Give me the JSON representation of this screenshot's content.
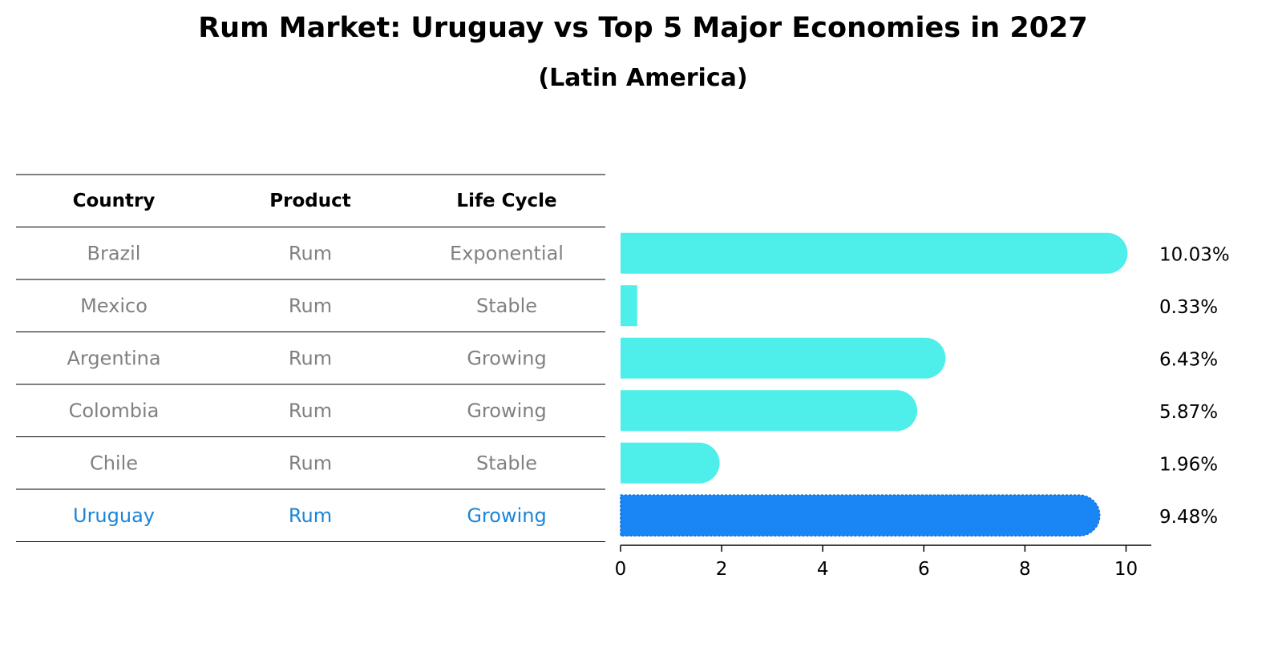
{
  "chart_data": {
    "type": "bar",
    "orientation": "horizontal",
    "title": "Rum Market: Uruguay vs Top 5 Major Economies in 2027",
    "subtitle": "(Latin America)",
    "table": {
      "headers": [
        "Country",
        "Product",
        "Life Cycle"
      ],
      "rows": [
        {
          "country": "Brazil",
          "product": "Rum",
          "life_cycle": "Exponential",
          "highlight": false
        },
        {
          "country": "Mexico",
          "product": "Rum",
          "life_cycle": "Stable",
          "highlight": false
        },
        {
          "country": "Argentina",
          "product": "Rum",
          "life_cycle": "Growing",
          "highlight": false
        },
        {
          "country": "Colombia",
          "product": "Rum",
          "life_cycle": "Growing",
          "highlight": false
        },
        {
          "country": "Chile",
          "product": "Rum",
          "life_cycle": "Stable",
          "highlight": false
        },
        {
          "country": "Uruguay",
          "product": "Rum",
          "life_cycle": "Growing",
          "highlight": true
        }
      ]
    },
    "categories": [
      "Brazil",
      "Mexico",
      "Argentina",
      "Colombia",
      "Chile",
      "Uruguay"
    ],
    "values": [
      10.03,
      0.33,
      6.43,
      5.87,
      1.96,
      9.48
    ],
    "value_labels": [
      "10.03%",
      "0.33%",
      "6.43%",
      "5.87%",
      "1.96%",
      "9.48%"
    ],
    "xlim": [
      0,
      10.5
    ],
    "xticks": [
      0,
      2,
      4,
      6,
      8,
      10
    ],
    "xtick_labels": [
      "0",
      "2",
      "4",
      "6",
      "8",
      "10"
    ],
    "xlabel": "",
    "ylabel": "",
    "grid": false,
    "colors": {
      "bar": "#4eeeea",
      "highlight_bar": "#1a85f5",
      "table_text": "#808080",
      "highlight_text": "#1a85d8",
      "header_text": "#000000",
      "axis": "#000000"
    }
  }
}
